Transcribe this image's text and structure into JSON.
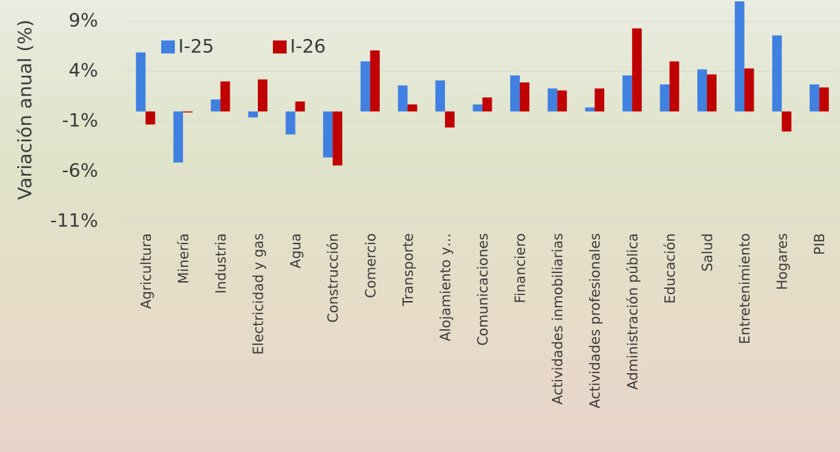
{
  "chart_data": {
    "type": "bar",
    "y_label": "Variación anual (%)",
    "categories": [
      "Agricultura",
      "Minería",
      "Industria",
      "Electricidad y gas",
      "Agua",
      "Construcción",
      "Comercio",
      "Transporte",
      "Alojamiento y…",
      "Comunicaciones",
      "Financiero",
      "Actividades inmobiliarias",
      "Actividades profesionales",
      "Administración pública",
      "Educación",
      "Salud",
      "Entretenimiento",
      "Hogares",
      "PIB"
    ],
    "series": [
      {
        "name": "I-25",
        "color": "#3f80e0",
        "values": [
          5.9,
          -5.1,
          1.2,
          -0.6,
          -2.3,
          -4.6,
          5.0,
          2.6,
          3.1,
          0.7,
          3.6,
          2.3,
          0.4,
          3.6,
          2.7,
          4.2,
          11,
          7.6,
          2.7
        ]
      },
      {
        "name": "I-26",
        "color": "#c00000",
        "values": [
          -1.3,
          -0.1,
          3.0,
          3.2,
          1.0,
          -5.4,
          6.1,
          0.7,
          -1.6,
          1.4,
          2.9,
          2.1,
          2.3,
          8.3,
          5.0,
          3.7,
          4.3,
          -2.0,
          2.4
        ]
      }
    ],
    "ylim": [
      -11,
      11
    ],
    "yticks": [
      {
        "value": 9,
        "label": "9%"
      },
      {
        "value": 4,
        "label": "4%"
      },
      {
        "value": -1,
        "label": "-1%"
      },
      {
        "value": -6,
        "label": "-6%"
      },
      {
        "value": -11,
        "label": "-11%"
      }
    ],
    "grid": true,
    "legend": "top-left"
  }
}
